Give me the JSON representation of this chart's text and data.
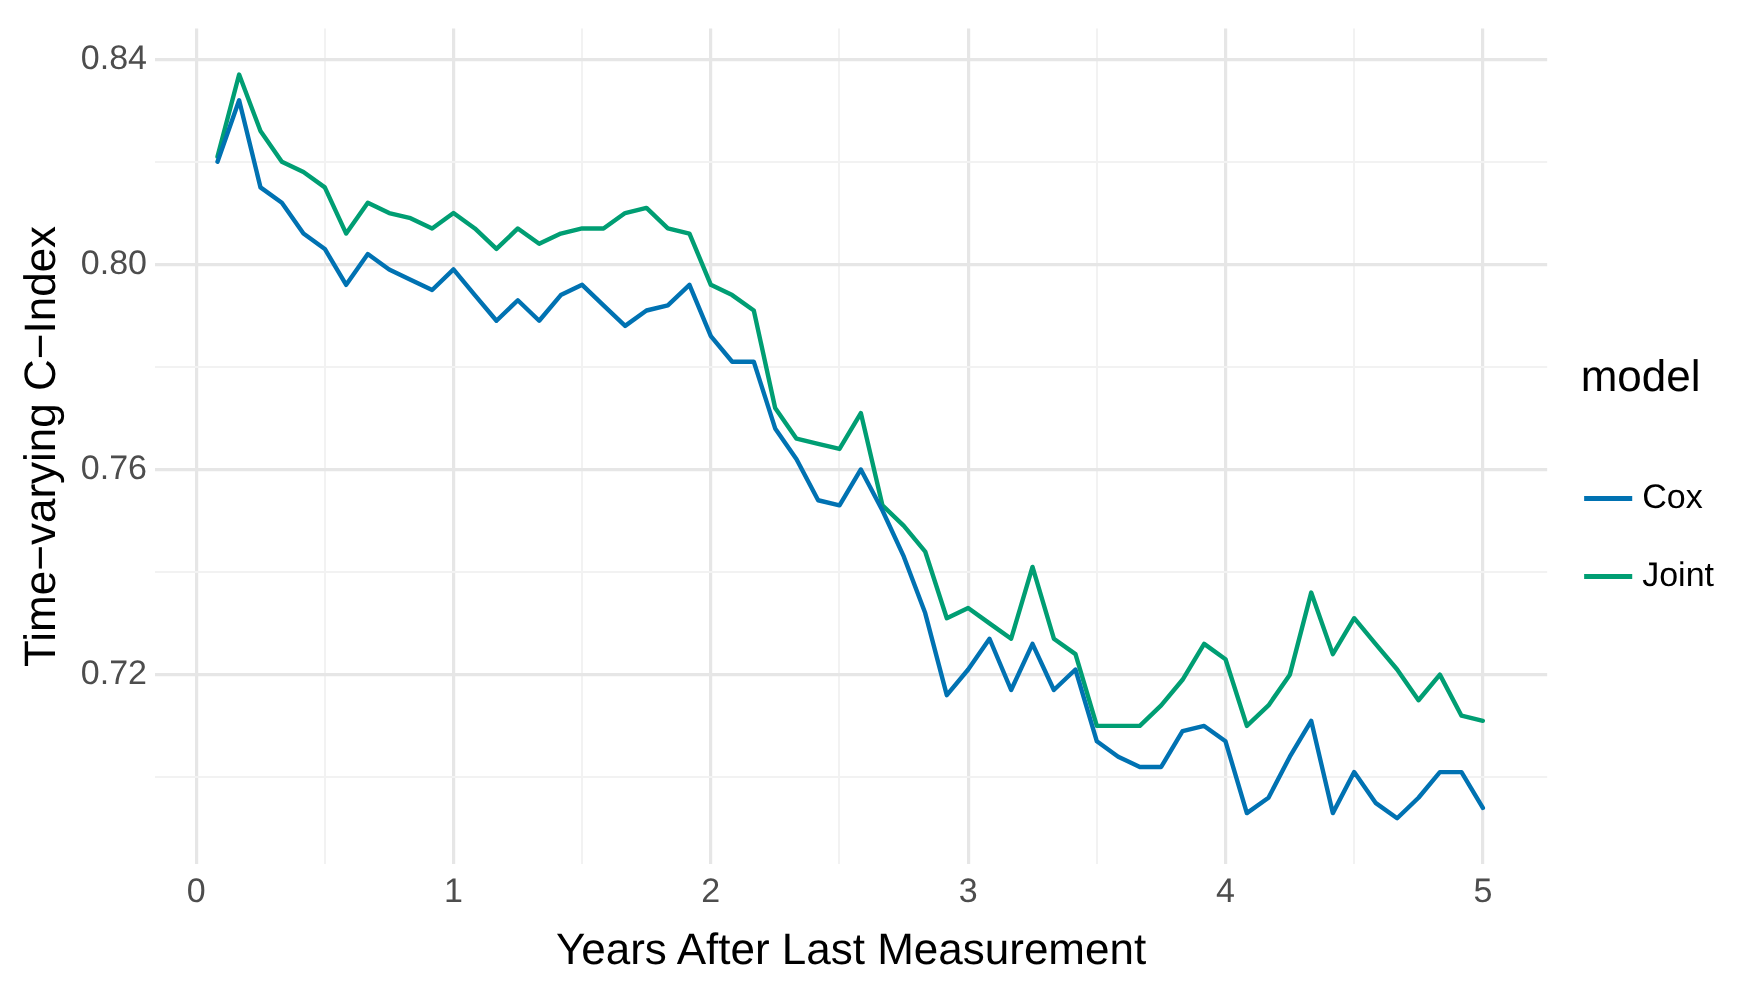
{
  "chart_data": {
    "type": "line",
    "xlabel": "Years After Last Measurement",
    "ylabel": "Time−varying C−Index",
    "legend_title": "model",
    "legend": "right",
    "grid": true,
    "marker": "none",
    "line_style": "solid",
    "xlim": [
      -0.16,
      5.25
    ],
    "xticks": [
      0,
      {
        "value": 0.5,
        "label": null
      },
      1,
      {
        "value": 1.5,
        "label": null
      },
      2,
      {
        "value": 2.5,
        "label": null
      },
      3,
      {
        "value": 3.5,
        "label": null
      },
      4,
      {
        "value": 4.5,
        "label": null
      },
      5
    ],
    "ylim": [
      0.683,
      0.846
    ],
    "yticks": [
      {
        "value": 0.7,
        "label": null
      },
      0.72,
      {
        "value": 0.74,
        "label": null
      },
      0.76,
      {
        "value": 0.78,
        "label": null
      },
      {
        "value": 0.8,
        "label": "0.80"
      },
      {
        "value": 0.82,
        "label": null
      },
      0.84
    ],
    "x": [
      0.083,
      0.167,
      0.25,
      0.333,
      0.417,
      0.5,
      0.583,
      0.667,
      0.75,
      0.833,
      0.917,
      1,
      1.083,
      1.167,
      1.25,
      1.333,
      1.417,
      1.5,
      1.583,
      1.667,
      1.75,
      1.833,
      1.917,
      2,
      2.083,
      2.167,
      2.25,
      2.333,
      2.417,
      2.5,
      2.583,
      2.667,
      2.75,
      2.833,
      2.917,
      3,
      3.083,
      3.167,
      3.25,
      3.333,
      3.417,
      3.5,
      3.583,
      3.667,
      3.75,
      3.833,
      3.917,
      4,
      4.083,
      4.167,
      4.25,
      4.333,
      4.417,
      4.5,
      4.583,
      4.667,
      4.75,
      4.833,
      4.917,
      5
    ],
    "series": [
      {
        "name": "Cox",
        "color": "#0072b2",
        "values": [
          0.82,
          0.832,
          0.815,
          0.812,
          0.806,
          0.803,
          0.796,
          0.802,
          0.799,
          0.797,
          0.795,
          0.799,
          0.794,
          0.789,
          0.793,
          0.789,
          0.794,
          0.796,
          0.792,
          0.788,
          0.791,
          0.792,
          0.796,
          0.786,
          0.781,
          0.781,
          0.768,
          0.762,
          0.754,
          0.753,
          0.76,
          0.752,
          0.743,
          0.732,
          0.716,
          0.721,
          0.727,
          0.717,
          0.726,
          0.717,
          0.721,
          0.707,
          0.704,
          0.702,
          0.702,
          0.709,
          0.71,
          0.707,
          0.693,
          0.696,
          0.704,
          0.711,
          0.693,
          0.701,
          0.695,
          0.692,
          0.696,
          0.701,
          0.701,
          0.694
        ]
      },
      {
        "name": "Joint",
        "color": "#009e73",
        "values": [
          0.821,
          0.837,
          0.826,
          0.82,
          0.818,
          0.815,
          0.806,
          0.812,
          0.81,
          0.809,
          0.807,
          0.81,
          0.807,
          0.803,
          0.807,
          0.804,
          0.806,
          0.807,
          0.807,
          0.81,
          0.811,
          0.807,
          0.806,
          0.796,
          0.794,
          0.791,
          0.772,
          0.766,
          0.765,
          0.764,
          0.771,
          0.753,
          0.749,
          0.744,
          0.731,
          0.733,
          0.73,
          0.727,
          0.741,
          0.727,
          0.724,
          0.71,
          0.71,
          0.71,
          0.714,
          0.719,
          0.726,
          0.723,
          0.71,
          0.714,
          0.72,
          0.736,
          0.724,
          0.731,
          0.726,
          0.721,
          0.715,
          0.72,
          0.712,
          0.711
        ]
      }
    ]
  }
}
